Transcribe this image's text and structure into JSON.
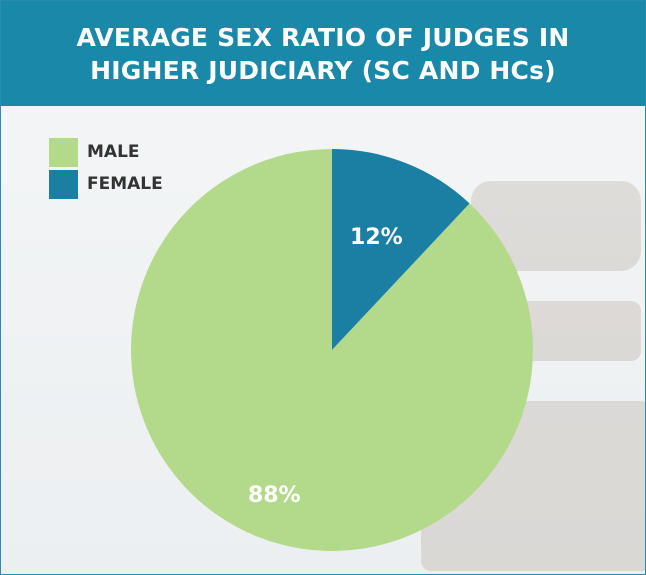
{
  "chart_data": {
    "type": "pie",
    "title": "AVERAGE SEX RATIO OF JUDGES IN HIGHER JUDICIARY (SC AND HCs)",
    "categories": [
      "MALE",
      "FEMALE"
    ],
    "values": [
      88,
      12
    ],
    "value_labels": [
      "88%",
      "12%"
    ],
    "colors": [
      "#b3d98a",
      "#1a7fa2"
    ],
    "start_angle": 0,
    "direction": "counterclockwise-from-top-female-first"
  }
}
